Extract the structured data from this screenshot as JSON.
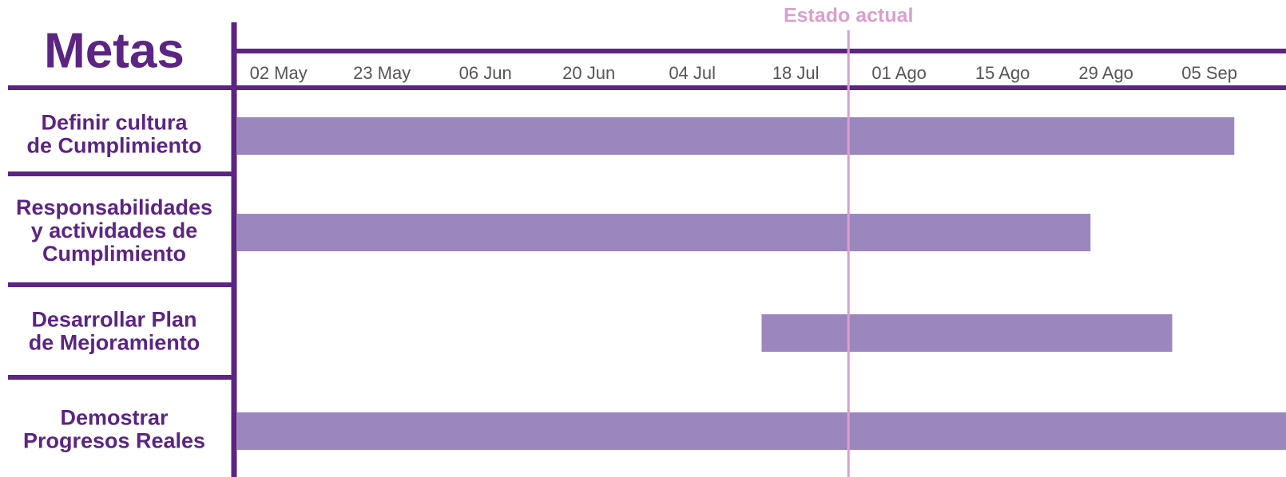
{
  "chart_data": {
    "type": "gantt",
    "title": "Metas",
    "categories": [
      [
        "Definir cultura",
        "de Cumplimiento"
      ],
      [
        "Responsabilidades",
        "y actividades de",
        "Cumplimiento"
      ],
      [
        "Desarrollar Plan",
        "de Mejoramiento"
      ],
      [
        "Demostrar",
        "Progresos Reales"
      ]
    ],
    "start": [
      -0.4,
      -0.4,
      4.67,
      -0.4
    ],
    "end": [
      9.24,
      7.85,
      8.64,
      9.74
    ],
    "color": "#9b86bd",
    "xlim": [
      -0.43,
      9.74
    ],
    "xticks": [
      {
        "value": 0,
        "label": "02 May"
      },
      {
        "value": 1,
        "label": "23 May"
      },
      {
        "value": 2,
        "label": "06 Jun"
      },
      {
        "value": 3,
        "label": "20 Jun"
      },
      {
        "value": 4,
        "label": "04 Jul"
      },
      {
        "value": 5,
        "label": "18 Jul"
      },
      {
        "value": 6,
        "label": "01 Ago"
      },
      {
        "value": 7,
        "label": "15 Ago"
      },
      {
        "value": 8,
        "label": "29 Ago"
      },
      {
        "value": 9,
        "label": "05 Sep"
      }
    ],
    "current": {
      "label": "Estado actual",
      "value": 5.51,
      "color": "#d9a0cc"
    }
  }
}
